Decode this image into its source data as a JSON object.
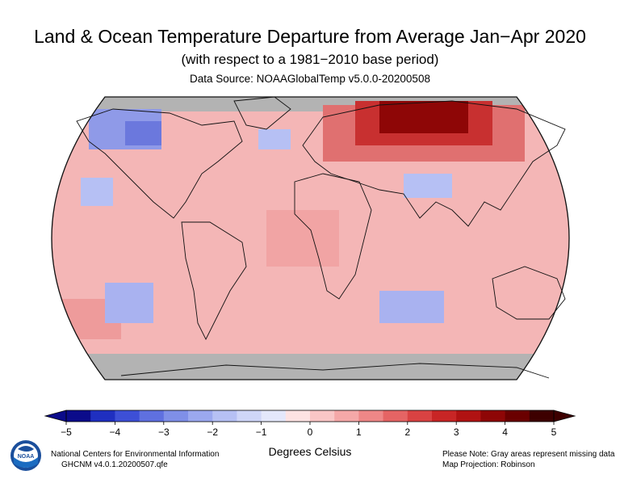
{
  "header": {
    "title": "Land & Ocean Temperature Departure from Average Jan−Apr 2020",
    "subtitle": "(with respect to a 1981−2010 base period)",
    "source": "Data Source: NOAAGlobalTemp v5.0.0-20200508"
  },
  "legend": {
    "units": "Degrees Celsius",
    "ticks": [
      "−5",
      "−4",
      "−3",
      "−2",
      "−1",
      "0",
      "1",
      "2",
      "3",
      "4",
      "5"
    ],
    "colors": [
      "#0b0b8a",
      "#1f2fc0",
      "#3d4fd6",
      "#5f70e0",
      "#7f8fe8",
      "#9ba8ef",
      "#b6c0f4",
      "#cfd6f8",
      "#e4e8fb",
      "#fde3e3",
      "#f9c6c6",
      "#f5a8a8",
      "#ee8787",
      "#e56464",
      "#d94242",
      "#c82525",
      "#b01212",
      "#8e0606",
      "#6a0000",
      "#3d0000"
    ]
  },
  "footer": {
    "org_line1": "National Centers for Environmental Information",
    "org_line2": "GHCNM v4.0.1.20200507.qfe",
    "note_line1": "Please Note: Gray areas represent missing data",
    "note_line2": "Map Projection: Robinson",
    "logo_text": "NOAA"
  },
  "map": {
    "projection": "Robinson",
    "missing_color": "#b3b3b3",
    "base_color": "#f4b6b6"
  }
}
